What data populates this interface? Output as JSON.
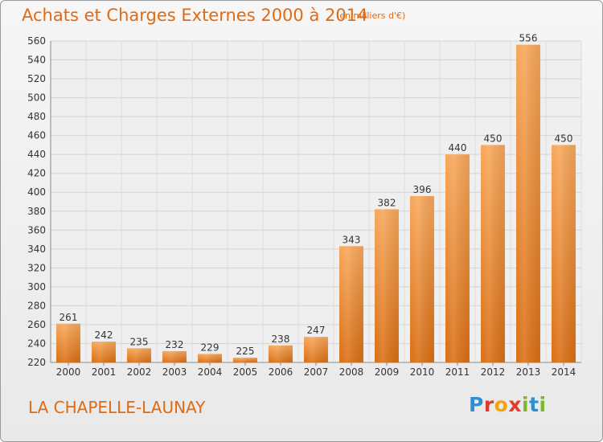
{
  "chart_data": {
    "type": "bar",
    "title": "Achats et Charges Externes 2000 à 2014",
    "subtitle": "(en milliers d'€)",
    "categories": [
      "2000",
      "2001",
      "2002",
      "2003",
      "2004",
      "2005",
      "2006",
      "2007",
      "2008",
      "2009",
      "2010",
      "2011",
      "2012",
      "2013",
      "2014"
    ],
    "values": [
      261,
      242,
      235,
      232,
      229,
      225,
      238,
      247,
      343,
      382,
      396,
      440,
      450,
      556,
      450
    ],
    "ylim": [
      220,
      560
    ],
    "yticks": [
      220,
      240,
      260,
      280,
      300,
      320,
      340,
      360,
      380,
      400,
      420,
      440,
      460,
      480,
      500,
      520,
      540,
      560
    ],
    "grid": true,
    "bar_color": "#e9812a"
  },
  "footer": {
    "town": "LA CHAPELLE-LAUNAY",
    "brand_letters": [
      "P",
      "r",
      "o",
      "x",
      "i",
      "t",
      "i"
    ]
  }
}
